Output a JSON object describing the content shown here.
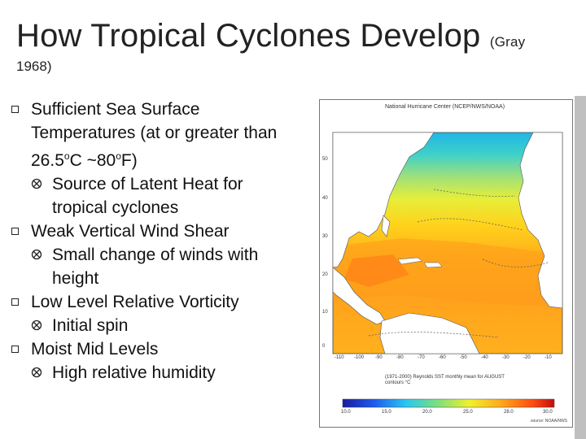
{
  "title": {
    "main": "How Tropical Cyclones Develop",
    "small": "(Gray",
    "cont": "1968)"
  },
  "bullets": [
    {
      "text_a": "Sufficient Sea Surface Temperatures (at or greater than 26.5",
      "deg1": "o",
      "text_b": "C ~80",
      "deg2": "o",
      "text_c": "F)",
      "sub": "Source of Latent Heat for tropical cyclones"
    },
    {
      "text": "Weak Vertical Wind Shear",
      "sub": "Small change of winds with height"
    },
    {
      "text": "Low Level Relative Vorticity",
      "sub": "Initial spin"
    },
    {
      "text": "Moist Mid Levels",
      "sub": "High relative humidity"
    }
  ],
  "map": {
    "header": "National Hurricane Center (NCEP/NWS/NOAA)",
    "caption": "(1971-2000) Reynolds SST monthly mean for AUGUST",
    "caption2": "contours °C",
    "reference": "source: NOAA/NWS",
    "lat_labels": [
      "50",
      "40",
      "30",
      "20",
      "10",
      "0"
    ],
    "lon_labels": [
      "-110",
      "-100",
      "-90",
      "-80",
      "-70",
      "-60",
      "-50",
      "-40",
      "-30",
      "-20",
      "-10"
    ],
    "scale_labels": [
      "10.0",
      "15.0",
      "20.0",
      "25.0",
      "28.0",
      "30.0"
    ]
  }
}
